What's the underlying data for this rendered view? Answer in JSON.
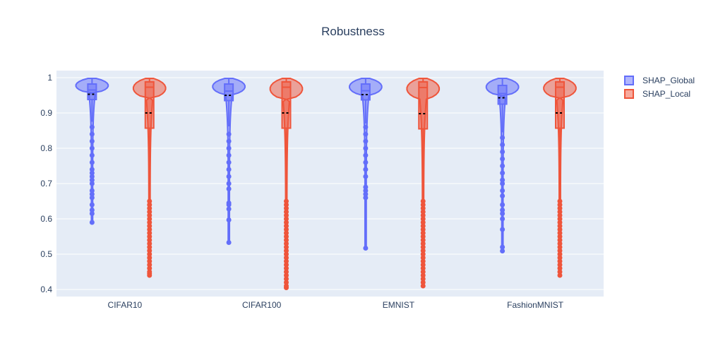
{
  "chart_data": {
    "type": "violin",
    "title": "Robustness",
    "xlabel": "",
    "ylabel": "",
    "categories": [
      "CIFAR10",
      "CIFAR100",
      "EMNIST",
      "FashionMNIST"
    ],
    "ylim": [
      0.38,
      1.02
    ],
    "yticks": [
      0.4,
      0.5,
      0.6,
      0.7,
      0.8,
      0.9,
      1
    ],
    "ytick_labels": [
      "0.4",
      "0.5",
      "0.6",
      "0.7",
      "0.8",
      "0.9",
      "1"
    ],
    "grid": true,
    "legend_position": "top-right",
    "background_color": "#e5ecf6",
    "series": [
      {
        "name": "SHAP_Global",
        "color": "#636efa",
        "fill": "rgba(99,110,250,0.5)",
        "stats": [
          {
            "category": "CIFAR10",
            "min": 0.59,
            "q1": 0.938,
            "median": 0.965,
            "q3": 0.982,
            "max": 0.998,
            "mean": 0.953,
            "upper_fence": 0.998,
            "lower_fence": 0.875
          },
          {
            "category": "CIFAR100",
            "min": 0.533,
            "q1": 0.935,
            "median": 0.962,
            "q3": 0.982,
            "max": 0.998,
            "mean": 0.95,
            "upper_fence": 0.998,
            "lower_fence": 0.862
          },
          {
            "category": "EMNIST",
            "min": 0.517,
            "q1": 0.937,
            "median": 0.963,
            "q3": 0.982,
            "max": 0.998,
            "mean": 0.952,
            "upper_fence": 0.998,
            "lower_fence": 0.87
          },
          {
            "category": "FashionMNIST",
            "min": 0.509,
            "q1": 0.925,
            "median": 0.955,
            "q3": 0.978,
            "max": 0.998,
            "mean": 0.943,
            "upper_fence": 0.998,
            "lower_fence": 0.845
          }
        ],
        "outliers": [
          [
            0.59,
            0.615,
            0.625,
            0.64,
            0.66,
            0.67,
            0.68,
            0.7,
            0.71,
            0.72,
            0.73,
            0.74,
            0.76,
            0.78,
            0.8,
            0.82,
            0.84,
            0.86
          ],
          [
            0.533,
            0.597,
            0.628,
            0.64,
            0.645,
            0.685,
            0.7,
            0.72,
            0.74,
            0.76,
            0.78,
            0.8,
            0.82,
            0.84
          ],
          [
            0.517,
            0.66,
            0.67,
            0.68,
            0.69,
            0.72,
            0.74,
            0.76,
            0.78,
            0.8,
            0.82,
            0.84,
            0.86
          ],
          [
            0.509,
            0.52,
            0.57,
            0.6,
            0.615,
            0.625,
            0.64,
            0.665,
            0.68,
            0.7,
            0.71,
            0.73,
            0.75,
            0.77,
            0.79,
            0.81,
            0.83
          ]
        ]
      },
      {
        "name": "SHAP_Local",
        "color": "#ef553b",
        "fill": "rgba(239,85,59,0.5)",
        "stats": [
          {
            "category": "CIFAR10",
            "min": 0.44,
            "q1": 0.857,
            "median": 0.973,
            "q3": 0.988,
            "max": 0.998,
            "mean": 0.9,
            "upper_fence": 0.998,
            "lower_fence": 0.66
          },
          {
            "category": "CIFAR100",
            "min": 0.405,
            "q1": 0.857,
            "median": 0.973,
            "q3": 0.988,
            "max": 0.998,
            "mean": 0.9,
            "upper_fence": 0.998,
            "lower_fence": 0.66
          },
          {
            "category": "EMNIST",
            "min": 0.41,
            "q1": 0.855,
            "median": 0.972,
            "q3": 0.988,
            "max": 0.998,
            "mean": 0.898,
            "upper_fence": 0.998,
            "lower_fence": 0.655
          },
          {
            "category": "FashionMNIST",
            "min": 0.44,
            "q1": 0.857,
            "median": 0.973,
            "q3": 0.988,
            "max": 0.998,
            "mean": 0.9,
            "upper_fence": 0.998,
            "lower_fence": 0.66
          }
        ],
        "outliers": [
          [
            0.44,
            0.445,
            0.45,
            0.46,
            0.47,
            0.48,
            0.49,
            0.5,
            0.51,
            0.52,
            0.53,
            0.54,
            0.55,
            0.56,
            0.57,
            0.58,
            0.59,
            0.6,
            0.61,
            0.62,
            0.63,
            0.64,
            0.65
          ],
          [
            0.405,
            0.41,
            0.42,
            0.43,
            0.44,
            0.45,
            0.46,
            0.47,
            0.48,
            0.49,
            0.5,
            0.51,
            0.52,
            0.53,
            0.54,
            0.55,
            0.56,
            0.57,
            0.58,
            0.59,
            0.6,
            0.61,
            0.62,
            0.63,
            0.64,
            0.65
          ],
          [
            0.41,
            0.42,
            0.43,
            0.44,
            0.45,
            0.46,
            0.47,
            0.48,
            0.49,
            0.5,
            0.51,
            0.52,
            0.53,
            0.54,
            0.55,
            0.56,
            0.57,
            0.58,
            0.59,
            0.6,
            0.61,
            0.62,
            0.63,
            0.64,
            0.65
          ],
          [
            0.44,
            0.45,
            0.46,
            0.47,
            0.48,
            0.49,
            0.5,
            0.51,
            0.52,
            0.53,
            0.54,
            0.55,
            0.56,
            0.57,
            0.58,
            0.59,
            0.6,
            0.61,
            0.62,
            0.63,
            0.64,
            0.65
          ]
        ]
      }
    ]
  }
}
